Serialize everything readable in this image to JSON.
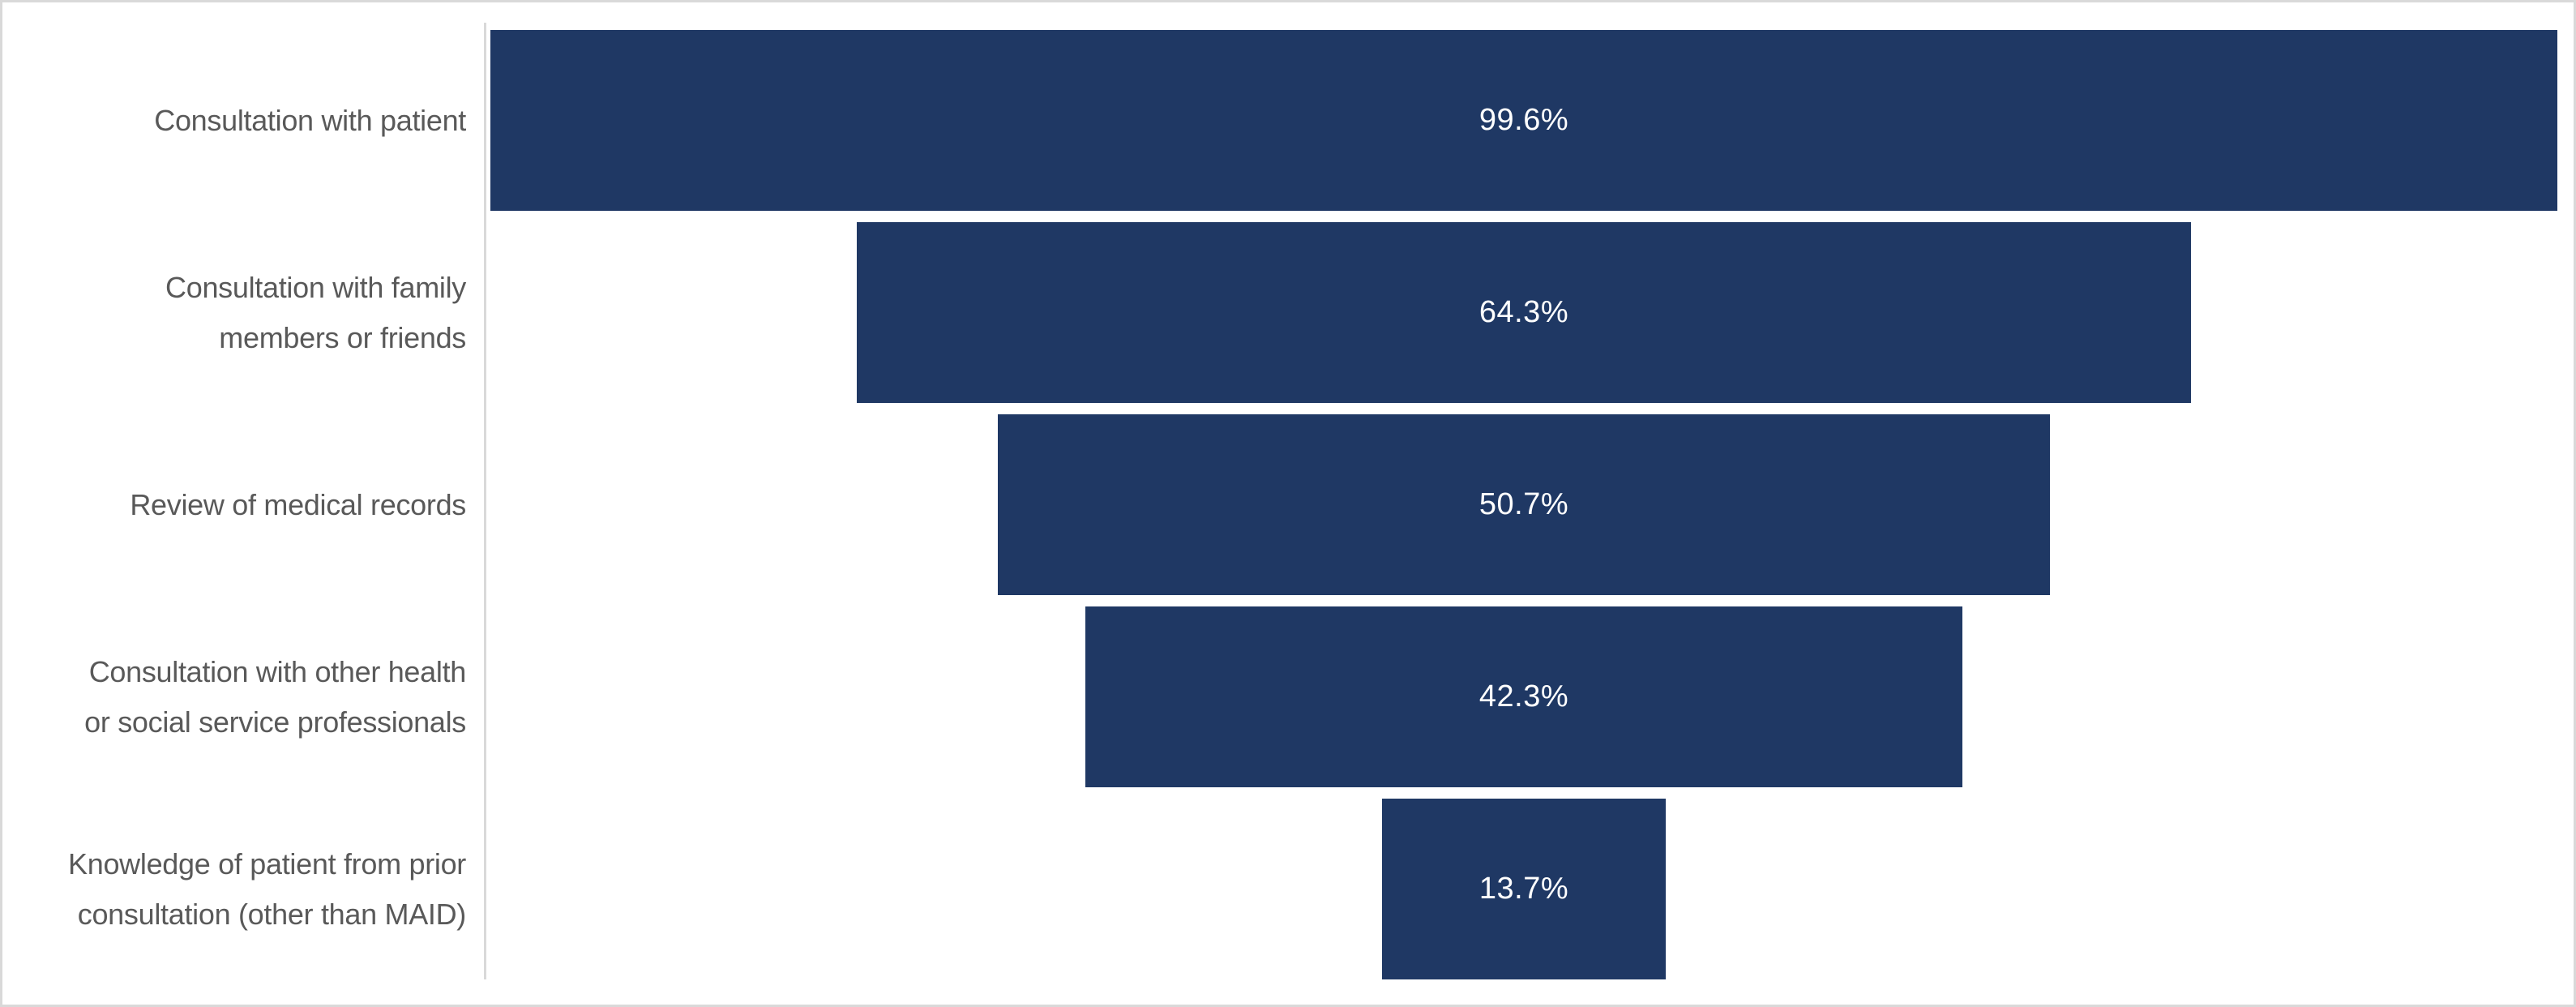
{
  "colors": {
    "bar": "#1F3864",
    "category_text": "#595959",
    "data_label_text": "#FFFFFF",
    "axis_line": "#D9D9D9",
    "chart_border": "#D9D9D9",
    "background": "#FFFFFF"
  },
  "chart_data": {
    "type": "bar",
    "subtype": "funnel-centered-horizontal-bars",
    "title": "",
    "xlabel": "",
    "ylabel": "",
    "xlim": [
      0,
      100
    ],
    "grid": false,
    "legend": false,
    "axis_line_visible": true,
    "categories": [
      "Consultation with patient",
      "Consultation with family\nmembers or friends",
      "Review of medical records",
      "Consultation with other health\nor social service professionals",
      "Knowledge of patient from prior\nconsultation (other than MAID)"
    ],
    "values": [
      99.6,
      64.3,
      50.7,
      42.3,
      13.7
    ],
    "data_labels": [
      "99.6%",
      "64.3%",
      "50.7%",
      "42.3%",
      "13.7%"
    ]
  }
}
